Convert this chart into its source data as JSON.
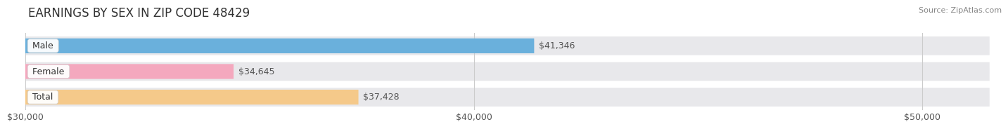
{
  "title": "EARNINGS BY SEX IN ZIP CODE 48429",
  "source": "Source: ZipAtlas.com",
  "categories": [
    "Male",
    "Female",
    "Total"
  ],
  "values": [
    41346,
    34645,
    37428
  ],
  "value_labels": [
    "$41,346",
    "$34,645",
    "$37,428"
  ],
  "bar_colors": [
    "#6ab0dc",
    "#f4a8be",
    "#f5c98a"
  ],
  "xmin": 30000,
  "xmax": 51500,
  "xticks": [
    30000,
    40000,
    50000
  ],
  "xtick_labels": [
    "$30,000",
    "$40,000",
    "$50,000"
  ],
  "bg_color": "#ffffff",
  "bar_bg_color": "#e8e8eb",
  "title_fontsize": 12,
  "label_fontsize": 9,
  "tick_fontsize": 9,
  "bar_height": 0.58,
  "category_label_fontsize": 9
}
